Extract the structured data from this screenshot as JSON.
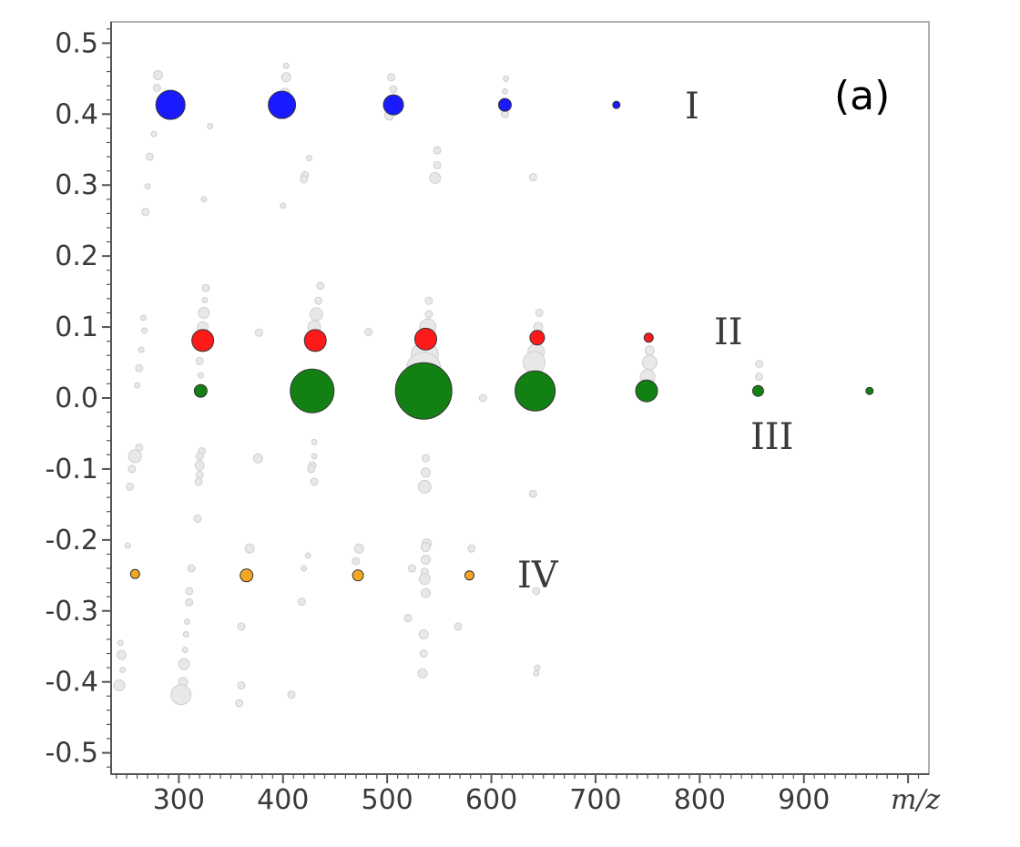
{
  "chart_data": {
    "type": "scatter",
    "title": "",
    "panel_label": "(a)",
    "xlabel": "m/z",
    "ylabel": "",
    "xlim": [
      235,
      1020
    ],
    "ylim": [
      -0.53,
      0.53
    ],
    "x_ticks": [
      300,
      400,
      500,
      600,
      700,
      800,
      900
    ],
    "y_ticks": [
      0.5,
      0.4,
      0.3,
      0.2,
      0.1,
      0.0,
      -0.1,
      -0.2,
      -0.3,
      -0.4,
      -0.5
    ],
    "y_tick_labels": [
      "0.5",
      "0.4",
      "0.3",
      "0.2",
      "0.1",
      "0.0",
      "-0.1",
      "-0.2",
      "-0.3",
      "-0.4",
      "-0.5"
    ],
    "grid": false,
    "point_size_meaning": "relative intensity",
    "colors": {
      "I": "#1a1aff",
      "II": "#ff1a1a",
      "III": "#138013",
      "IV": "#f5a623",
      "background_points": "#e8e8e8",
      "background_stroke": "#cfcfcf",
      "axis": "#555555",
      "frame": "#b0b0b0"
    },
    "series": [
      {
        "name": "I",
        "points": [
          {
            "x": 292,
            "y": 0.413,
            "size": 16
          },
          {
            "x": 399,
            "y": 0.413,
            "size": 15
          },
          {
            "x": 506,
            "y": 0.413,
            "size": 11
          },
          {
            "x": 613,
            "y": 0.413,
            "size": 7
          },
          {
            "x": 720,
            "y": 0.413,
            "size": 4
          }
        ]
      },
      {
        "name": "II",
        "points": [
          {
            "x": 323,
            "y": 0.081,
            "size": 12
          },
          {
            "x": 431,
            "y": 0.081,
            "size": 12
          },
          {
            "x": 537,
            "y": 0.083,
            "size": 12
          },
          {
            "x": 644,
            "y": 0.085,
            "size": 8
          },
          {
            "x": 751,
            "y": 0.085,
            "size": 5
          }
        ]
      },
      {
        "name": "III",
        "points": [
          {
            "x": 321,
            "y": 0.01,
            "size": 7
          },
          {
            "x": 428,
            "y": 0.01,
            "size": 24
          },
          {
            "x": 535,
            "y": 0.01,
            "size": 31
          },
          {
            "x": 642,
            "y": 0.01,
            "size": 22
          },
          {
            "x": 749,
            "y": 0.01,
            "size": 12
          },
          {
            "x": 856,
            "y": 0.01,
            "size": 6
          },
          {
            "x": 963,
            "y": 0.01,
            "size": 4
          }
        ]
      },
      {
        "name": "IV",
        "points": [
          {
            "x": 258,
            "y": -0.248,
            "size": 5
          },
          {
            "x": 365,
            "y": -0.25,
            "size": 7
          },
          {
            "x": 472,
            "y": -0.25,
            "size": 6
          },
          {
            "x": 579,
            "y": -0.25,
            "size": 5
          }
        ]
      }
    ],
    "background_points": [
      {
        "x": 280,
        "y": 0.455,
        "size": 5
      },
      {
        "x": 279,
        "y": 0.437,
        "size": 4
      },
      {
        "x": 276,
        "y": 0.372,
        "size": 3
      },
      {
        "x": 272,
        "y": 0.34,
        "size": 4
      },
      {
        "x": 270,
        "y": 0.298,
        "size": 3
      },
      {
        "x": 268,
        "y": 0.262,
        "size": 4
      },
      {
        "x": 330,
        "y": 0.383,
        "size": 3
      },
      {
        "x": 324,
        "y": 0.28,
        "size": 3
      },
      {
        "x": 403,
        "y": 0.468,
        "size": 3
      },
      {
        "x": 403,
        "y": 0.452,
        "size": 5
      },
      {
        "x": 402,
        "y": 0.43,
        "size": 5
      },
      {
        "x": 400,
        "y": 0.271,
        "size": 3
      },
      {
        "x": 425,
        "y": 0.338,
        "size": 3
      },
      {
        "x": 421,
        "y": 0.314,
        "size": 4
      },
      {
        "x": 420,
        "y": 0.308,
        "size": 4
      },
      {
        "x": 504,
        "y": 0.452,
        "size": 4
      },
      {
        "x": 506,
        "y": 0.435,
        "size": 4
      },
      {
        "x": 502,
        "y": 0.398,
        "size": 5
      },
      {
        "x": 548,
        "y": 0.349,
        "size": 4
      },
      {
        "x": 548,
        "y": 0.328,
        "size": 4
      },
      {
        "x": 546,
        "y": 0.31,
        "size": 6
      },
      {
        "x": 614,
        "y": 0.45,
        "size": 3
      },
      {
        "x": 613,
        "y": 0.432,
        "size": 3
      },
      {
        "x": 613,
        "y": 0.4,
        "size": 4
      },
      {
        "x": 640,
        "y": 0.311,
        "size": 4
      },
      {
        "x": 266,
        "y": 0.113,
        "size": 3
      },
      {
        "x": 267,
        "y": 0.095,
        "size": 3
      },
      {
        "x": 264,
        "y": 0.068,
        "size": 3
      },
      {
        "x": 262,
        "y": 0.042,
        "size": 4
      },
      {
        "x": 260,
        "y": 0.018,
        "size": 3
      },
      {
        "x": 326,
        "y": 0.155,
        "size": 4
      },
      {
        "x": 325,
        "y": 0.138,
        "size": 3
      },
      {
        "x": 324,
        "y": 0.12,
        "size": 6
      },
      {
        "x": 323,
        "y": 0.1,
        "size": 6
      },
      {
        "x": 320,
        "y": 0.052,
        "size": 4
      },
      {
        "x": 321,
        "y": 0.032,
        "size": 3
      },
      {
        "x": 377,
        "y": 0.092,
        "size": 4
      },
      {
        "x": 436,
        "y": 0.158,
        "size": 4
      },
      {
        "x": 434,
        "y": 0.137,
        "size": 4
      },
      {
        "x": 432,
        "y": 0.118,
        "size": 7
      },
      {
        "x": 430,
        "y": 0.1,
        "size": 7
      },
      {
        "x": 482,
        "y": 0.093,
        "size": 4
      },
      {
        "x": 540,
        "y": 0.137,
        "size": 4
      },
      {
        "x": 540,
        "y": 0.118,
        "size": 4
      },
      {
        "x": 539,
        "y": 0.1,
        "size": 9
      },
      {
        "x": 536,
        "y": 0.06,
        "size": 15
      },
      {
        "x": 535,
        "y": 0.04,
        "size": 19
      },
      {
        "x": 646,
        "y": 0.12,
        "size": 4
      },
      {
        "x": 645,
        "y": 0.1,
        "size": 5
      },
      {
        "x": 643,
        "y": 0.065,
        "size": 9
      },
      {
        "x": 641,
        "y": 0.05,
        "size": 12
      },
      {
        "x": 752,
        "y": 0.067,
        "size": 5
      },
      {
        "x": 752,
        "y": 0.05,
        "size": 8
      },
      {
        "x": 750,
        "y": 0.03,
        "size": 8
      },
      {
        "x": 857,
        "y": 0.048,
        "size": 4
      },
      {
        "x": 857,
        "y": 0.03,
        "size": 4
      },
      {
        "x": 592,
        "y": 0.0,
        "size": 4
      },
      {
        "x": 262,
        "y": -0.07,
        "size": 4
      },
      {
        "x": 258,
        "y": -0.082,
        "size": 7
      },
      {
        "x": 255,
        "y": -0.1,
        "size": 4
      },
      {
        "x": 253,
        "y": -0.125,
        "size": 4
      },
      {
        "x": 322,
        "y": -0.075,
        "size": 4
      },
      {
        "x": 320,
        "y": -0.082,
        "size": 4
      },
      {
        "x": 320,
        "y": -0.095,
        "size": 5
      },
      {
        "x": 320,
        "y": -0.108,
        "size": 4
      },
      {
        "x": 319,
        "y": -0.118,
        "size": 4
      },
      {
        "x": 318,
        "y": -0.17,
        "size": 4
      },
      {
        "x": 376,
        "y": -0.085,
        "size": 5
      },
      {
        "x": 430,
        "y": -0.062,
        "size": 3
      },
      {
        "x": 430,
        "y": -0.082,
        "size": 3
      },
      {
        "x": 428,
        "y": -0.095,
        "size": 4
      },
      {
        "x": 427,
        "y": -0.1,
        "size": 4
      },
      {
        "x": 430,
        "y": -0.118,
        "size": 4
      },
      {
        "x": 537,
        "y": -0.085,
        "size": 4
      },
      {
        "x": 537,
        "y": -0.105,
        "size": 5
      },
      {
        "x": 536,
        "y": -0.125,
        "size": 7
      },
      {
        "x": 640,
        "y": -0.135,
        "size": 4
      },
      {
        "x": 251,
        "y": -0.208,
        "size": 3
      },
      {
        "x": 244,
        "y": -0.345,
        "size": 3
      },
      {
        "x": 245,
        "y": -0.362,
        "size": 5
      },
      {
        "x": 246,
        "y": -0.383,
        "size": 3
      },
      {
        "x": 243,
        "y": -0.405,
        "size": 6
      },
      {
        "x": 312,
        "y": -0.24,
        "size": 4
      },
      {
        "x": 310,
        "y": -0.272,
        "size": 4
      },
      {
        "x": 310,
        "y": -0.288,
        "size": 4
      },
      {
        "x": 308,
        "y": -0.315,
        "size": 3
      },
      {
        "x": 307,
        "y": -0.333,
        "size": 3
      },
      {
        "x": 306,
        "y": -0.355,
        "size": 3
      },
      {
        "x": 305,
        "y": -0.375,
        "size": 6
      },
      {
        "x": 304,
        "y": -0.4,
        "size": 5
      },
      {
        "x": 302,
        "y": -0.418,
        "size": 11
      },
      {
        "x": 368,
        "y": -0.212,
        "size": 5
      },
      {
        "x": 360,
        "y": -0.322,
        "size": 4
      },
      {
        "x": 360,
        "y": -0.405,
        "size": 4
      },
      {
        "x": 358,
        "y": -0.43,
        "size": 4
      },
      {
        "x": 424,
        "y": -0.222,
        "size": 3
      },
      {
        "x": 420,
        "y": -0.24,
        "size": 3
      },
      {
        "x": 418,
        "y": -0.287,
        "size": 4
      },
      {
        "x": 408,
        "y": -0.418,
        "size": 4
      },
      {
        "x": 473,
        "y": -0.212,
        "size": 5
      },
      {
        "x": 470,
        "y": -0.23,
        "size": 4
      },
      {
        "x": 524,
        "y": -0.24,
        "size": 4
      },
      {
        "x": 520,
        "y": -0.31,
        "size": 4
      },
      {
        "x": 538,
        "y": -0.205,
        "size": 5
      },
      {
        "x": 537,
        "y": -0.21,
        "size": 5
      },
      {
        "x": 537,
        "y": -0.228,
        "size": 5
      },
      {
        "x": 536,
        "y": -0.245,
        "size": 4
      },
      {
        "x": 536,
        "y": -0.255,
        "size": 6
      },
      {
        "x": 537,
        "y": -0.275,
        "size": 5
      },
      {
        "x": 535,
        "y": -0.333,
        "size": 5
      },
      {
        "x": 535,
        "y": -0.36,
        "size": 4
      },
      {
        "x": 534,
        "y": -0.388,
        "size": 5
      },
      {
        "x": 568,
        "y": -0.322,
        "size": 4
      },
      {
        "x": 581,
        "y": -0.212,
        "size": 4
      },
      {
        "x": 643,
        "y": -0.272,
        "size": 4
      },
      {
        "x": 644,
        "y": -0.38,
        "size": 3
      },
      {
        "x": 643,
        "y": -0.388,
        "size": 3
      }
    ]
  }
}
